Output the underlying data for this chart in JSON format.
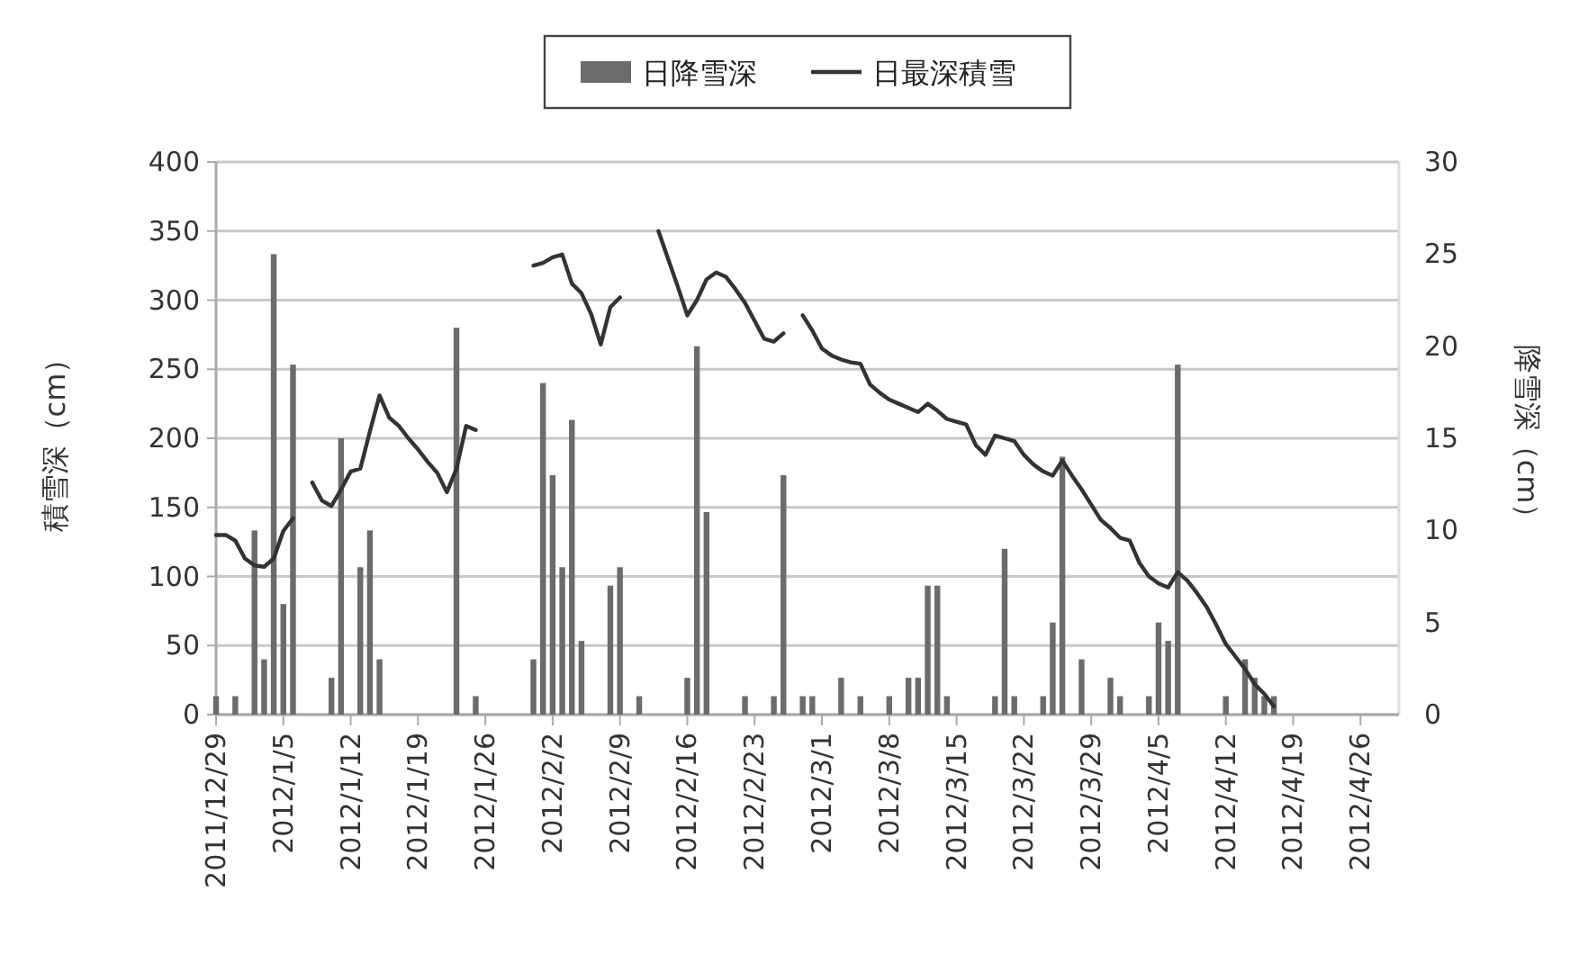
{
  "chart_data": {
    "type": "bar",
    "x": [
      "2011-12-29",
      "2011-12-30",
      "2011-12-31",
      "2012-01-01",
      "2012-01-02",
      "2012-01-03",
      "2012-01-04",
      "2012-01-05",
      "2012-01-06",
      "2012-01-07",
      "2012-01-08",
      "2012-01-09",
      "2012-01-10",
      "2012-01-11",
      "2012-01-12",
      "2012-01-13",
      "2012-01-14",
      "2012-01-15",
      "2012-01-16",
      "2012-01-17",
      "2012-01-18",
      "2012-01-19",
      "2012-01-20",
      "2012-01-21",
      "2012-01-22",
      "2012-01-23",
      "2012-01-24",
      "2012-01-25",
      "2012-01-26",
      "2012-01-27",
      "2012-01-28",
      "2012-01-29",
      "2012-01-30",
      "2012-01-31",
      "2012-02-01",
      "2012-02-02",
      "2012-02-03",
      "2012-02-04",
      "2012-02-05",
      "2012-02-06",
      "2012-02-07",
      "2012-02-08",
      "2012-02-09",
      "2012-02-10",
      "2012-02-11",
      "2012-02-12",
      "2012-02-13",
      "2012-02-14",
      "2012-02-15",
      "2012-02-16",
      "2012-02-17",
      "2012-02-18",
      "2012-02-19",
      "2012-02-20",
      "2012-02-21",
      "2012-02-22",
      "2012-02-23",
      "2012-02-24",
      "2012-02-25",
      "2012-02-26",
      "2012-02-27",
      "2012-02-28",
      "2012-02-29",
      "2012-03-01",
      "2012-03-02",
      "2012-03-03",
      "2012-03-04",
      "2012-03-05",
      "2012-03-06",
      "2012-03-07",
      "2012-03-08",
      "2012-03-09",
      "2012-03-10",
      "2012-03-11",
      "2012-03-12",
      "2012-03-13",
      "2012-03-14",
      "2012-03-15",
      "2012-03-16",
      "2012-03-17",
      "2012-03-18",
      "2012-03-19",
      "2012-03-20",
      "2012-03-21",
      "2012-03-22",
      "2012-03-23",
      "2012-03-24",
      "2012-03-25",
      "2012-03-26",
      "2012-03-27",
      "2012-03-28",
      "2012-03-29",
      "2012-03-30",
      "2012-03-31",
      "2012-04-01",
      "2012-04-02",
      "2012-04-03",
      "2012-04-04",
      "2012-04-05",
      "2012-04-06",
      "2012-04-07",
      "2012-04-08",
      "2012-04-09",
      "2012-04-10",
      "2012-04-11",
      "2012-04-12",
      "2012-04-13",
      "2012-04-14",
      "2012-04-15",
      "2012-04-16",
      "2012-04-17"
    ],
    "series": [
      {
        "name": "日降雪深",
        "axis": "y2",
        "color": "#6b6b6b",
        "values": [
          1,
          null,
          1,
          null,
          10,
          3,
          25,
          6,
          19,
          null,
          null,
          null,
          2,
          15,
          null,
          8,
          10,
          3,
          null,
          null,
          null,
          null,
          null,
          null,
          null,
          21,
          null,
          1,
          null,
          null,
          null,
          null,
          null,
          3,
          18,
          13,
          8,
          16,
          4,
          null,
          null,
          7,
          8,
          null,
          1,
          null,
          null,
          null,
          null,
          2,
          20,
          11,
          null,
          null,
          null,
          1,
          null,
          null,
          1,
          13,
          null,
          1,
          1,
          null,
          null,
          2,
          null,
          1,
          null,
          null,
          1,
          null,
          2,
          2,
          7,
          7,
          1,
          null,
          null,
          null,
          null,
          1,
          9,
          1,
          null,
          null,
          1,
          5,
          14,
          null,
          3,
          null,
          null,
          2,
          1,
          null,
          null,
          1,
          5,
          4,
          19,
          null,
          null,
          null,
          null,
          1,
          null,
          3,
          2,
          1,
          1
        ]
      },
      {
        "name": "日最深積雪",
        "type": "line",
        "color": "#333333",
        "values": [
          130,
          130,
          126,
          113,
          108,
          107,
          113,
          133,
          142,
          null,
          168,
          155,
          151,
          163,
          176,
          178,
          205,
          231,
          215,
          209,
          200,
          192,
          183,
          175,
          161,
          178,
          209,
          206,
          null,
          null,
          null,
          null,
          null,
          325,
          327,
          331,
          333,
          312,
          305,
          290,
          268,
          295,
          302,
          null,
          null,
          null,
          350,
          330,
          310,
          289,
          300,
          315,
          320,
          317,
          308,
          298,
          285,
          272,
          270,
          276,
          null,
          289,
          278,
          265,
          260,
          257,
          255,
          254,
          239,
          233,
          228,
          225,
          222,
          219,
          225,
          220,
          214,
          212,
          210,
          195,
          188,
          202,
          200,
          198,
          188,
          181,
          176,
          173,
          184,
          173,
          163,
          152,
          141,
          135,
          128,
          126,
          110,
          100,
          95,
          92,
          103,
          97,
          88,
          78,
          65,
          51,
          42,
          33,
          22,
          15,
          6
        ]
      }
    ],
    "xlim": [
      "2011-12-29",
      "2012-04-30"
    ],
    "xticks": [
      {
        "value": "2011-12-29",
        "label": "2011/12/29"
      },
      {
        "value": "2012-01-05",
        "label": "2012/1/5"
      },
      {
        "value": "2012-01-12",
        "label": "2012/1/12"
      },
      {
        "value": "2012-01-19",
        "label": "2012/1/19"
      },
      {
        "value": "2012-01-26",
        "label": "2012/1/26"
      },
      {
        "value": "2012-02-02",
        "label": "2012/2/2"
      },
      {
        "value": "2012-02-09",
        "label": "2012/2/9"
      },
      {
        "value": "2012-02-16",
        "label": "2012/2/16"
      },
      {
        "value": "2012-02-23",
        "label": "2012/2/23"
      },
      {
        "value": "2012-03-01",
        "label": "2012/3/1"
      },
      {
        "value": "2012-03-08",
        "label": "2012/3/8"
      },
      {
        "value": "2012-03-15",
        "label": "2012/3/15"
      },
      {
        "value": "2012-03-22",
        "label": "2012/3/22"
      },
      {
        "value": "2012-03-29",
        "label": "2012/3/29"
      },
      {
        "value": "2012-04-05",
        "label": "2012/4/5"
      },
      {
        "value": "2012-04-12",
        "label": "2012/4/12"
      },
      {
        "value": "2012-04-19",
        "label": "2012/4/19"
      },
      {
        "value": "2012-04-26",
        "label": "2012/4/26"
      }
    ],
    "ylim": [
      0,
      400
    ],
    "yticks": [
      0,
      50,
      100,
      150,
      200,
      250,
      300,
      350,
      400
    ],
    "y2lim": [
      0,
      30
    ],
    "y2ticks": [
      0,
      5,
      10,
      15,
      20,
      25,
      30
    ],
    "ylabel": "積雪深（cm）",
    "y2label": "降雪深（cm）",
    "grid": "y",
    "legend": "top"
  }
}
